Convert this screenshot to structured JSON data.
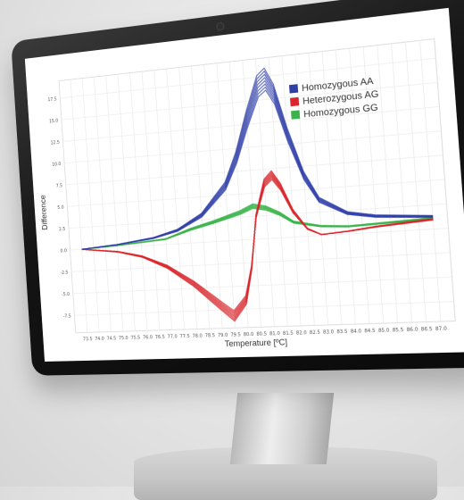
{
  "colors": {
    "homozygous_aa": "#2f3fa8",
    "heterozygous_ag": "#d8262b",
    "homozygous_gg": "#3bb34a"
  },
  "chart_data": {
    "type": "line",
    "title": "",
    "xlabel": "Temperature [ºC]",
    "ylabel": "Difference",
    "xlim": [
      73.0,
      87.5
    ],
    "ylim": [
      -9.5,
      19.5
    ],
    "x_ticks": [
      "73.5",
      "74.0",
      "74.5",
      "75.0",
      "75.5",
      "76.0",
      "76.5",
      "77.0",
      "77.5",
      "78.0",
      "78.5",
      "79.0",
      "79.5",
      "80.0",
      "80.5",
      "81.0",
      "81.5",
      "82.0",
      "82.5",
      "83.0",
      "83.5",
      "84.0",
      "84.5",
      "85.0",
      "85.5",
      "86.0",
      "86.5",
      "87.0"
    ],
    "y_ticks": [
      "17.5",
      "15.0",
      "12.5",
      "10.0",
      "7.5",
      "5.0",
      "2.5",
      "0.0",
      "-2.5",
      "-5.0",
      "-7.5"
    ],
    "grid": true,
    "legend_position": "top-right",
    "series": [
      {
        "name": "Homozygous AA",
        "x": [
          73.5,
          75.0,
          76.5,
          77.5,
          78.5,
          79.5,
          80.0,
          80.5,
          81.0,
          81.3,
          81.6,
          82.0,
          82.5,
          83.0,
          84.0,
          85.0,
          86.0,
          87.0
        ],
        "y": [
          0.0,
          0.3,
          0.8,
          1.5,
          3.0,
          6.0,
          9.0,
          13.0,
          16.5,
          17.2,
          15.5,
          11.0,
          6.5,
          3.8,
          2.2,
          1.7,
          1.5,
          1.3
        ]
      },
      {
        "name": "Heterozygous AG",
        "x": [
          73.5,
          75.0,
          76.0,
          77.0,
          78.0,
          79.0,
          79.5,
          80.0,
          80.3,
          80.6,
          81.0,
          81.3,
          81.6,
          82.0,
          82.5,
          83.0,
          84.0,
          85.0,
          86.0,
          87.0
        ],
        "y": [
          0.0,
          -0.5,
          -1.2,
          -2.5,
          -4.5,
          -7.0,
          -8.2,
          -6.5,
          -3.0,
          2.5,
          6.0,
          6.8,
          5.5,
          2.8,
          0.8,
          0.1,
          0.3,
          0.6,
          0.8,
          1.0
        ]
      },
      {
        "name": "Homozygous GG",
        "x": [
          73.5,
          75.0,
          76.0,
          77.0,
          78.0,
          79.0,
          79.5,
          80.0,
          80.5,
          81.0,
          81.5,
          82.0,
          83.0,
          84.0,
          85.0,
          86.0,
          87.0
        ],
        "y": [
          0.0,
          0.2,
          0.4,
          0.6,
          1.5,
          2.2,
          2.6,
          3.0,
          3.6,
          3.3,
          2.6,
          1.6,
          1.0,
          0.8,
          0.9,
          1.0,
          1.1
        ]
      }
    ]
  }
}
